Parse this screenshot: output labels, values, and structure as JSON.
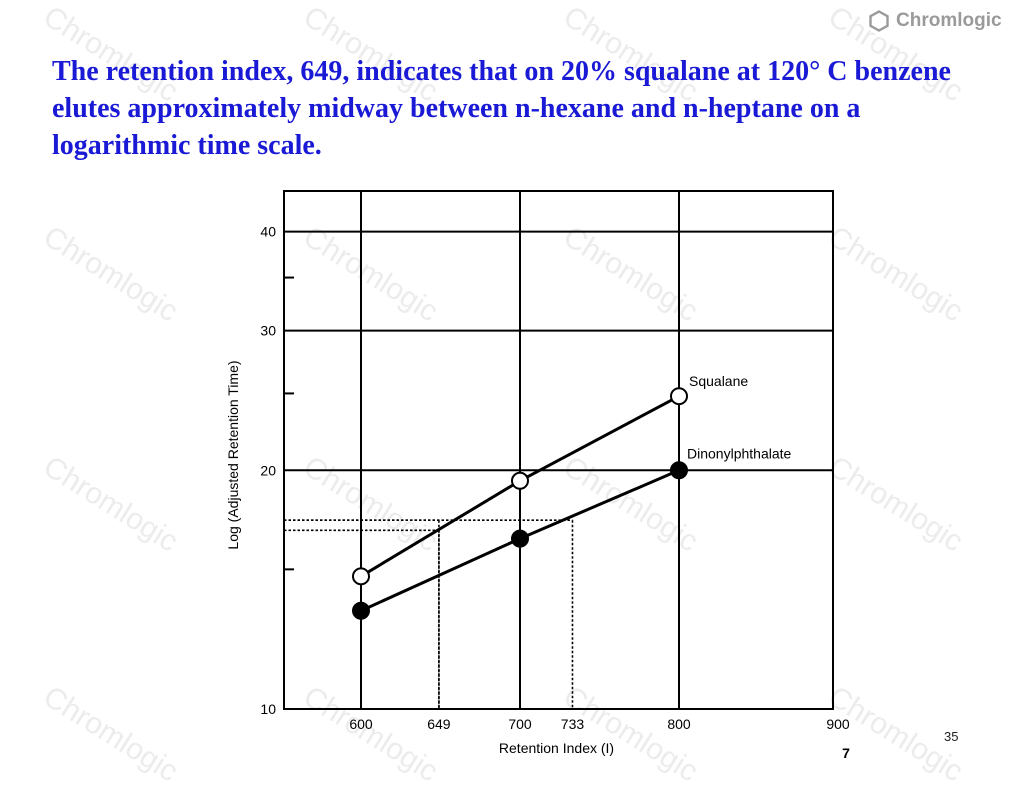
{
  "slide": {
    "title": "The retention index, 649, indicates that on 20% squalane at 120° C benzene elutes approximately midway between n-hexane and n-heptane on a logarithmic time scale.",
    "logo_text": "Chromlogic",
    "watermark_text": "Chromlogic",
    "page_number": "35"
  },
  "chart_data": {
    "type": "line",
    "xlabel": "Retention Index (I)",
    "ylabel": "Log (Adjusted Retention Time)",
    "figure_number": "7",
    "xlim": [
      500,
      900
    ],
    "ylim": [
      10,
      45
    ],
    "y_scale": "log",
    "grid": true,
    "x_ticks": [
      {
        "value": 600,
        "label": "600"
      },
      {
        "value": 649,
        "label": "649"
      },
      {
        "value": 700,
        "label": "700"
      },
      {
        "value": 733,
        "label": "733"
      },
      {
        "value": 800,
        "label": "800"
      },
      {
        "value": 900,
        "label": "900"
      }
    ],
    "y_ticks": [
      {
        "value": 10,
        "label": "10"
      },
      {
        "value": 20,
        "label": "20"
      },
      {
        "value": 30,
        "label": "30"
      },
      {
        "value": 40,
        "label": "40"
      }
    ],
    "x_gridlines": [
      600,
      700,
      800
    ],
    "y_gridlines": [
      20,
      30,
      40
    ],
    "y_minor_ticks": [
      15,
      25,
      35
    ],
    "series": [
      {
        "name": "Squalane",
        "marker": "open-circle",
        "points": [
          [
            600,
            14.7
          ],
          [
            700,
            19.4
          ],
          [
            800,
            24.8
          ]
        ]
      },
      {
        "name": "Dinonylphthalate",
        "marker": "filled-circle",
        "points": [
          [
            600,
            13.3
          ],
          [
            700,
            16.4
          ],
          [
            800,
            20.0
          ]
        ]
      }
    ],
    "reference_lines": [
      {
        "x": 649,
        "y": 17.3
      },
      {
        "x": 733,
        "y": 17.3
      },
      {
        "x": 649,
        "y": 16.8
      }
    ],
    "colors": {
      "line": "#000000",
      "title": "#1a1ad6"
    }
  }
}
